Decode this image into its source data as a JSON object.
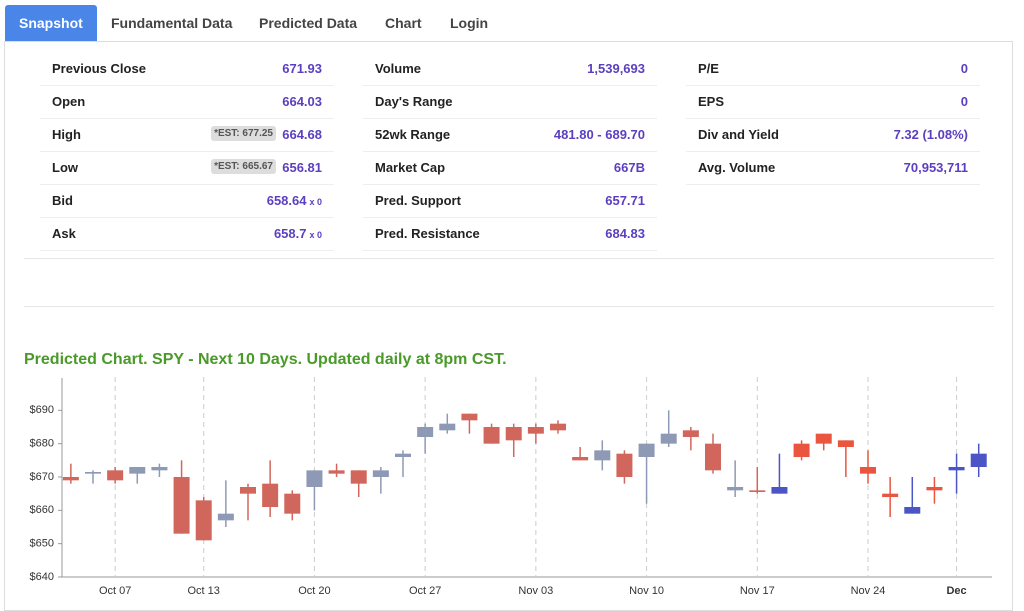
{
  "tabs": [
    "Snapshot",
    "Fundamental Data",
    "Predicted Data",
    "Chart",
    "Login"
  ],
  "stats": [
    [
      {
        "label": "Previous Close",
        "value": "671.93"
      },
      {
        "label": "Open",
        "value": "664.03"
      },
      {
        "label": "High",
        "value": "664.68",
        "badge": "*EST: 677.25"
      },
      {
        "label": "Low",
        "value": "656.81",
        "badge": "*EST: 665.67"
      },
      {
        "label": "Bid",
        "value": "658.64",
        "suffix": "x 0"
      },
      {
        "label": "Ask",
        "value": "658.7",
        "suffix": "x 0"
      }
    ],
    [
      {
        "label": "Volume",
        "value": "1,539,693"
      },
      {
        "label": "Day's Range"
      },
      {
        "label": "52wk Range",
        "value": "481.80 - 689.70"
      },
      {
        "label": "Market Cap",
        "value": "667B"
      },
      {
        "label": "Pred. Support",
        "value": "657.71"
      },
      {
        "label": "Pred. Resistance",
        "value": "684.83"
      }
    ],
    [
      {
        "label": "P/E",
        "value": "0"
      },
      {
        "label": "EPS",
        "value": "0"
      },
      {
        "label": "Div and Yield",
        "value": "7.32 (1.08%)"
      },
      {
        "label": "Avg. Volume",
        "value": "70,953,711"
      }
    ]
  ],
  "chart_data": {
    "type": "candlestick",
    "title": "Predicted Chart. SPY - Next 10 Days. Updated daily at 8pm CST.",
    "categories": [
      null,
      null,
      "Oct 07",
      null,
      null,
      null,
      "Oct 13",
      null,
      null,
      null,
      null,
      "Oct 20",
      null,
      null,
      null,
      null,
      "Oct 27",
      null,
      null,
      null,
      null,
      "Nov 03",
      null,
      null,
      null,
      null,
      "Nov 10",
      null,
      null,
      null,
      null,
      "Nov 17",
      null,
      null,
      null,
      null,
      "Nov 24",
      null,
      null,
      null,
      "Dec",
      null
    ],
    "bold_categories": [
      "Dec"
    ],
    "ylim": [
      640,
      700
    ],
    "yticks": [
      {
        "value": 640,
        "label": "$640"
      },
      {
        "value": 650,
        "label": "$650"
      },
      {
        "value": 660,
        "label": "$660"
      },
      {
        "value": 670,
        "label": "$670"
      },
      {
        "value": 680,
        "label": "$680"
      },
      {
        "value": 690,
        "label": "$690"
      }
    ],
    "series": [
      {
        "up_color": "#8e9ab5",
        "down_color": "#d1675c",
        "open": [
          670,
          671,
          672,
          671,
          672,
          670,
          663,
          657,
          667,
          668,
          665,
          667,
          672,
          672,
          670,
          676,
          682,
          684,
          689,
          685,
          685,
          685,
          686,
          676,
          675,
          677,
          676,
          680,
          684,
          680,
          666,
          666,
          null,
          null,
          null,
          null,
          null,
          null,
          null,
          null,
          null,
          null
        ],
        "high": [
          674,
          672,
          673,
          673,
          674,
          675,
          664,
          669,
          668,
          675,
          666,
          672,
          674,
          672,
          673,
          678,
          686,
          689,
          689,
          686,
          686,
          686,
          687,
          679,
          681,
          678,
          680,
          690,
          685,
          683,
          675,
          673,
          null,
          null,
          null,
          null,
          null,
          null,
          null,
          null,
          null,
          null
        ],
        "low": [
          668,
          668,
          668,
          668,
          670,
          653,
          651,
          655,
          657,
          658,
          657,
          660,
          670,
          664,
          665,
          670,
          677,
          683,
          683,
          680,
          676,
          680,
          683,
          675,
          672,
          668,
          662,
          679,
          678,
          671,
          664,
          665,
          null,
          null,
          null,
          null,
          null,
          null,
          null,
          null,
          null,
          null
        ],
        "close": [
          669,
          671.5,
          669,
          673,
          673,
          653,
          651,
          659,
          665,
          661,
          659,
          672,
          671,
          668,
          672,
          677,
          685,
          686,
          687,
          680,
          681,
          683,
          684,
          675,
          678,
          670,
          680,
          683,
          682,
          672,
          667,
          665.5,
          null,
          null,
          null,
          null,
          null,
          null,
          null,
          null,
          null,
          null
        ]
      },
      {
        "up_color": "#4b55c6",
        "down_color": "#e9553f",
        "open": [
          null,
          null,
          null,
          null,
          null,
          null,
          null,
          null,
          null,
          null,
          null,
          null,
          null,
          null,
          null,
          null,
          null,
          null,
          null,
          null,
          null,
          null,
          null,
          null,
          null,
          null,
          null,
          null,
          null,
          null,
          null,
          null,
          665,
          680,
          683,
          681,
          673,
          665,
          659,
          667,
          672,
          673
        ],
        "high": [
          null,
          null,
          null,
          null,
          null,
          null,
          null,
          null,
          null,
          null,
          null,
          null,
          null,
          null,
          null,
          null,
          null,
          null,
          null,
          null,
          null,
          null,
          null,
          null,
          null,
          null,
          null,
          null,
          null,
          null,
          null,
          null,
          677,
          681,
          683,
          681,
          678,
          670,
          670,
          670,
          677,
          680
        ],
        "low": [
          null,
          null,
          null,
          null,
          null,
          null,
          null,
          null,
          null,
          null,
          null,
          null,
          null,
          null,
          null,
          null,
          null,
          null,
          null,
          null,
          null,
          null,
          null,
          null,
          null,
          null,
          null,
          null,
          null,
          null,
          null,
          null,
          665,
          675,
          678,
          670,
          668,
          658,
          659,
          662,
          665,
          670
        ],
        "close": [
          null,
          null,
          null,
          null,
          null,
          null,
          null,
          null,
          null,
          null,
          null,
          null,
          null,
          null,
          null,
          null,
          null,
          null,
          null,
          null,
          null,
          null,
          null,
          null,
          null,
          null,
          null,
          null,
          null,
          null,
          null,
          null,
          667,
          676,
          680,
          679,
          671,
          664,
          661,
          666,
          673,
          677
        ]
      }
    ]
  }
}
